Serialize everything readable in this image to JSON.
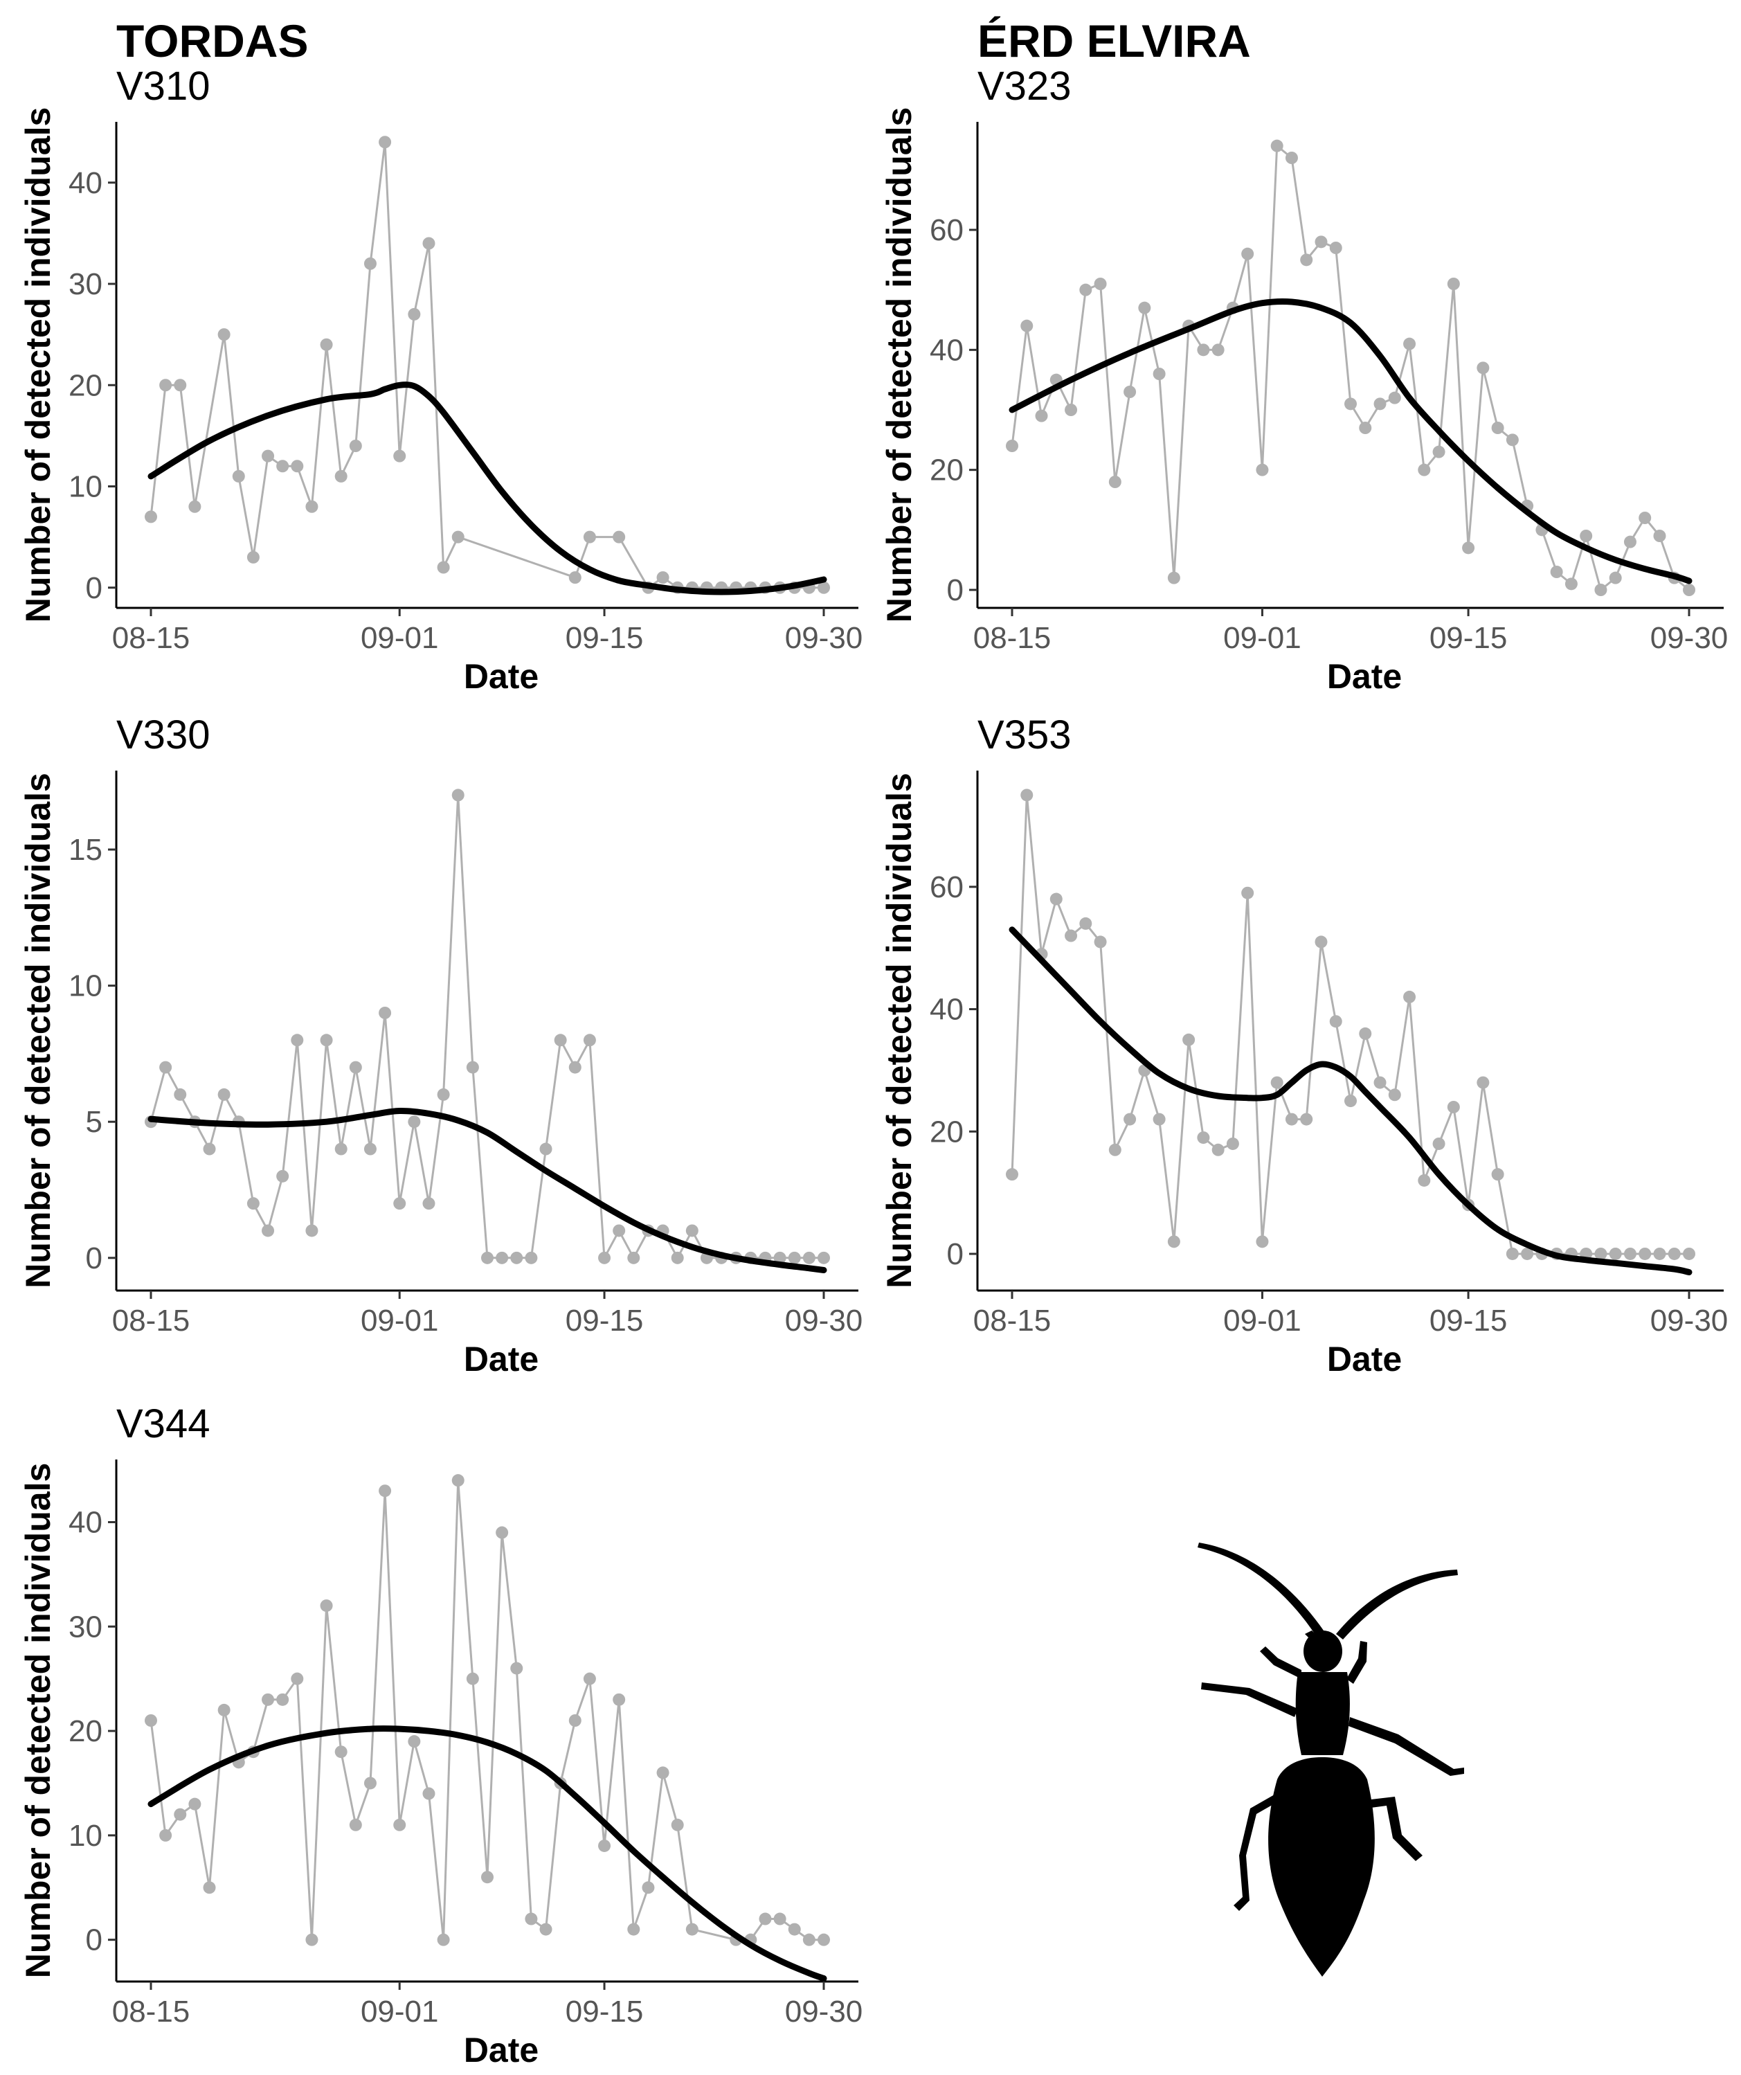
{
  "figure": {
    "site_titles": [
      "TORDAS",
      "ÉRD ELVIRA"
    ],
    "colors": {
      "observed": "#b0b0b0",
      "trend": "#000000",
      "text": "#000000",
      "tick_text": "#555555"
    },
    "decoration": "beetle-silhouette"
  },
  "chart_data": [
    {
      "type": "line",
      "site": "TORDAS",
      "title": "V310",
      "xlabel": "Date",
      "ylabel": "Number of detected individuals",
      "xlim": [
        0,
        46
      ],
      "ylim": [
        -2,
        46
      ],
      "xticks": [
        0,
        17,
        31,
        46
      ],
      "xtick_labels": [
        "08-15",
        "09-01",
        "09-15",
        "09-30"
      ],
      "yticks": [
        0,
        10,
        20,
        30,
        40
      ],
      "series": [
        {
          "name": "observed",
          "x": [
            0,
            1,
            2,
            3,
            5,
            6,
            7,
            8,
            9,
            10,
            11,
            12,
            13,
            14,
            15,
            16,
            17,
            18,
            19,
            20,
            21,
            29,
            30,
            32,
            34,
            35,
            36,
            37,
            38,
            39,
            40,
            41,
            42,
            43,
            44,
            45,
            46
          ],
          "values": [
            7,
            20,
            20,
            8,
            25,
            11,
            3,
            13,
            12,
            12,
            8,
            24,
            11,
            14,
            32,
            44,
            13,
            27,
            34,
            2,
            5,
            1,
            5,
            5,
            0,
            1,
            0,
            0,
            0,
            0,
            0,
            0,
            0,
            0,
            0,
            0,
            0
          ]
        },
        {
          "name": "trend",
          "x": [
            0,
            4,
            8,
            12,
            15,
            16,
            17,
            18,
            19,
            20,
            22,
            24,
            26,
            28,
            30,
            32,
            34,
            36,
            38,
            40,
            42,
            44,
            46
          ],
          "values": [
            11,
            14.5,
            17,
            18.6,
            19.1,
            19.6,
            20,
            19.9,
            18.9,
            17.3,
            13.4,
            9.5,
            6.2,
            3.6,
            1.8,
            0.7,
            0.2,
            -0.2,
            -0.4,
            -0.4,
            -0.2,
            0.2,
            0.8
          ]
        }
      ]
    },
    {
      "type": "line",
      "site": "ÉRD ELVIRA",
      "title": "V323",
      "xlabel": "Date",
      "ylabel": "Number of detected individuals",
      "xlim": [
        0,
        46
      ],
      "ylim": [
        -3,
        78
      ],
      "xticks": [
        0,
        17,
        31,
        46
      ],
      "xtick_labels": [
        "08-15",
        "09-01",
        "09-15",
        "09-30"
      ],
      "yticks": [
        0,
        20,
        40,
        60
      ],
      "series": [
        {
          "name": "observed",
          "x": [
            0,
            1,
            2,
            3,
            4,
            5,
            6,
            7,
            8,
            9,
            10,
            11,
            12,
            13,
            14,
            15,
            16,
            17,
            18,
            19,
            20,
            21,
            22,
            23,
            24,
            25,
            26,
            27,
            28,
            29,
            30,
            31,
            32,
            33,
            34,
            35,
            36,
            37,
            38,
            39,
            40,
            41,
            42,
            43,
            44,
            45,
            46
          ],
          "values": [
            24,
            44,
            29,
            35,
            30,
            50,
            51,
            18,
            33,
            47,
            36,
            2,
            44,
            40,
            40,
            47,
            56,
            20,
            74,
            72,
            55,
            58,
            57,
            31,
            27,
            31,
            32,
            41,
            20,
            23,
            51,
            7,
            37,
            27,
            25,
            14,
            10,
            3,
            1,
            9,
            0,
            2,
            8,
            12,
            9,
            2,
            0
          ]
        },
        {
          "name": "trend",
          "x": [
            0,
            4,
            8,
            12,
            15,
            17,
            19,
            21,
            23,
            25,
            27,
            29,
            31,
            33,
            35,
            37,
            39,
            41,
            43,
            45,
            46
          ],
          "values": [
            30,
            35,
            39.5,
            43.5,
            46.5,
            47.8,
            48,
            47,
            44.5,
            39,
            32,
            26.5,
            21.5,
            17,
            13,
            9.5,
            7,
            5,
            3.5,
            2.3,
            1.5
          ]
        }
      ]
    },
    {
      "type": "line",
      "site": "TORDAS",
      "title": "V330",
      "xlabel": "Date",
      "ylabel": "Number of detected individuals",
      "xlim": [
        0,
        46
      ],
      "ylim": [
        -1.2,
        17.9
      ],
      "xticks": [
        0,
        17,
        31,
        46
      ],
      "xtick_labels": [
        "08-15",
        "09-01",
        "09-15",
        "09-30"
      ],
      "yticks": [
        0,
        5,
        10,
        15
      ],
      "series": [
        {
          "name": "observed",
          "x": [
            0,
            1,
            2,
            3,
            4,
            5,
            6,
            7,
            8,
            9,
            10,
            11,
            12,
            13,
            14,
            15,
            16,
            17,
            18,
            19,
            20,
            21,
            22,
            23,
            24,
            25,
            26,
            27,
            28,
            29,
            30,
            31,
            32,
            33,
            34,
            35,
            36,
            37,
            38,
            39,
            40,
            41,
            42,
            43,
            44,
            45,
            46
          ],
          "values": [
            5,
            7,
            6,
            5,
            4,
            6,
            5,
            2,
            1,
            3,
            8,
            1,
            8,
            4,
            7,
            4,
            9,
            2,
            5,
            2,
            6,
            17,
            7,
            0,
            0,
            0,
            0,
            4,
            8,
            7,
            8,
            0,
            1,
            0,
            1,
            1,
            0,
            1,
            0,
            0,
            0,
            0,
            0,
            0,
            0,
            0,
            0
          ]
        },
        {
          "name": "trend",
          "x": [
            0,
            4,
            8,
            12,
            15,
            17,
            19,
            21,
            23,
            25,
            27,
            29,
            31,
            33,
            35,
            37,
            39,
            41,
            43,
            45,
            46
          ],
          "values": [
            5.1,
            4.95,
            4.9,
            5,
            5.25,
            5.4,
            5.3,
            5.05,
            4.6,
            3.9,
            3.2,
            2.55,
            1.9,
            1.3,
            0.8,
            0.4,
            0.1,
            -0.1,
            -0.25,
            -0.38,
            -0.45
          ]
        }
      ]
    },
    {
      "type": "line",
      "site": "ÉRD ELVIRA",
      "title": "V353",
      "xlabel": "Date",
      "ylabel": "Number of detected individuals",
      "xlim": [
        0,
        46
      ],
      "ylim": [
        -6,
        79
      ],
      "xticks": [
        0,
        17,
        31,
        46
      ],
      "xtick_labels": [
        "08-15",
        "09-01",
        "09-15",
        "09-30"
      ],
      "yticks": [
        0,
        20,
        40,
        60
      ],
      "series": [
        {
          "name": "observed",
          "x": [
            0,
            1,
            2,
            3,
            4,
            5,
            6,
            7,
            8,
            9,
            10,
            11,
            12,
            13,
            14,
            15,
            16,
            17,
            18,
            19,
            20,
            21,
            22,
            23,
            24,
            25,
            26,
            27,
            28,
            29,
            30,
            31,
            32,
            33,
            34,
            35,
            36,
            37,
            38,
            39,
            40,
            41,
            42,
            43,
            44,
            45,
            46
          ],
          "values": [
            13,
            75,
            49,
            58,
            52,
            54,
            51,
            17,
            22,
            30,
            22,
            2,
            35,
            19,
            17,
            18,
            59,
            2,
            28,
            22,
            22,
            51,
            38,
            25,
            36,
            28,
            26,
            42,
            12,
            18,
            24,
            8,
            28,
            13,
            0,
            0,
            0,
            0,
            0,
            0,
            0,
            0,
            0,
            0,
            0,
            0,
            0
          ]
        },
        {
          "name": "trend",
          "x": [
            0,
            2,
            4,
            6,
            8,
            10,
            12,
            14,
            16,
            17,
            18,
            19,
            20,
            21,
            22,
            23,
            24,
            25,
            27,
            29,
            31,
            33,
            35,
            37,
            39,
            41,
            43,
            45,
            46
          ],
          "values": [
            53,
            48,
            43,
            38,
            33.5,
            29.5,
            27,
            25.8,
            25.5,
            25.5,
            26,
            28,
            30,
            31,
            30.5,
            29,
            26.5,
            24,
            19,
            13,
            8,
            4,
            1.5,
            -0.3,
            -1,
            -1.5,
            -2,
            -2.5,
            -3
          ]
        }
      ]
    },
    {
      "type": "line",
      "site": "TORDAS",
      "title": "V344",
      "xlabel": "Date",
      "ylabel": "Number of detected individuals",
      "xlim": [
        0,
        46
      ],
      "ylim": [
        -4,
        46
      ],
      "xticks": [
        0,
        17,
        31,
        46
      ],
      "xtick_labels": [
        "08-15",
        "09-01",
        "09-15",
        "09-30"
      ],
      "yticks": [
        0,
        10,
        20,
        30,
        40
      ],
      "series": [
        {
          "name": "observed",
          "x": [
            0,
            1,
            2,
            3,
            4,
            5,
            6,
            7,
            8,
            9,
            10,
            11,
            12,
            13,
            14,
            15,
            16,
            17,
            18,
            19,
            20,
            21,
            22,
            23,
            24,
            25,
            26,
            27,
            28,
            29,
            30,
            31,
            32,
            33,
            34,
            35,
            36,
            37,
            40,
            41,
            42,
            43,
            44,
            45,
            46
          ],
          "values": [
            21,
            10,
            12,
            13,
            5,
            22,
            17,
            18,
            23,
            23,
            25,
            0,
            32,
            18,
            11,
            15,
            43,
            11,
            19,
            14,
            0,
            44,
            25,
            6,
            39,
            26,
            2,
            1,
            15,
            21,
            25,
            9,
            23,
            1,
            5,
            16,
            11,
            1,
            0,
            0,
            2,
            2,
            1,
            0,
            0
          ]
        },
        {
          "name": "trend",
          "x": [
            0,
            4,
            8,
            12,
            15,
            17,
            19,
            21,
            23,
            25,
            27,
            29,
            31,
            33,
            35,
            37,
            39,
            41,
            43,
            45,
            46
          ],
          "values": [
            13,
            16.3,
            18.6,
            19.8,
            20.2,
            20.2,
            20,
            19.6,
            18.9,
            17.8,
            16.2,
            13.8,
            11.2,
            8.5,
            6,
            3.6,
            1.4,
            -0.5,
            -2,
            -3.2,
            -3.7
          ]
        }
      ]
    }
  ]
}
